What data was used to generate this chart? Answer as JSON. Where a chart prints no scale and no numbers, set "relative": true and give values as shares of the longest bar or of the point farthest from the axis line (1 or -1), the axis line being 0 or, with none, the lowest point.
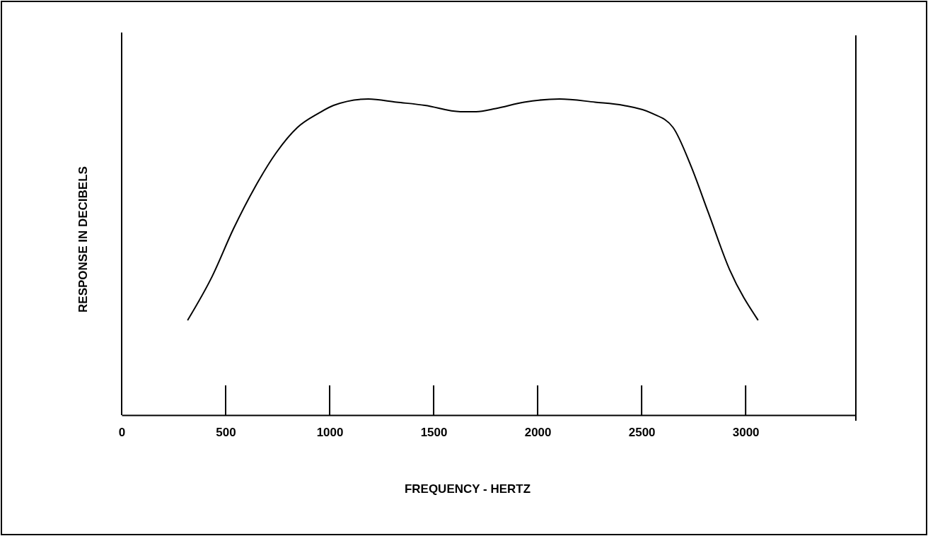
{
  "chart_data": {
    "type": "line",
    "xlabel": "FREQUENCY - HERTZ",
    "ylabel": "RESPONSE IN DECIBELS",
    "relative": true,
    "xlim": [
      0,
      3530
    ],
    "xticks": [
      0,
      500,
      1000,
      1500,
      2000,
      2500,
      3000
    ],
    "grid": false,
    "marker": "none",
    "line_style": "solid",
    "series": [
      {
        "color": "#000000",
        "x": [
          317,
          436,
          538,
          640,
          743,
          845,
          947,
          1019,
          1186,
          1322,
          1458,
          1629,
          1704,
          1799,
          1935,
          2106,
          2276,
          2412,
          2549,
          2651,
          2736,
          2821,
          2923,
          3060
        ],
        "values": [
          0.3,
          0.44,
          0.59,
          0.72,
          0.83,
          0.91,
          0.955,
          0.98,
          1.0,
          0.99,
          0.98,
          0.96,
          0.96,
          0.97,
          0.99,
          1.0,
          0.99,
          0.98,
          0.955,
          0.91,
          0.79,
          0.64,
          0.46,
          0.3
        ]
      }
    ]
  }
}
